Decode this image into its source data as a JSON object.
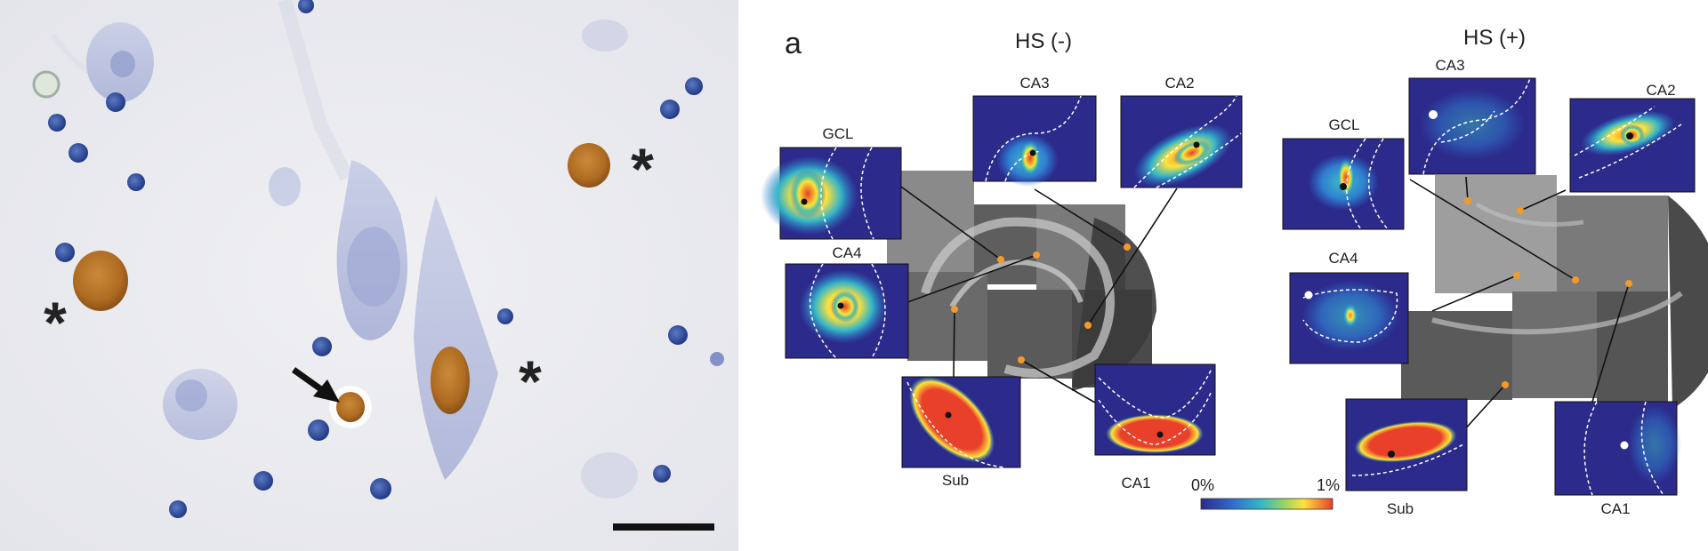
{
  "micrograph": {
    "markers": {
      "asterisk": "*"
    },
    "colors": {
      "background": "#ececf0",
      "stained_nucleus": "#b8742a",
      "small_nucleus": "#3a5aa8",
      "neuron_body": "#aab4d8"
    }
  },
  "figure": {
    "panel_label": "a",
    "groups": [
      {
        "title": "HS (-)"
      },
      {
        "title": "HS (+)"
      }
    ],
    "insets_left": {
      "gcl": "GCL",
      "ca3": "CA3",
      "ca2": "CA2",
      "ca4": "CA4",
      "sub": "Sub",
      "ca1": "CA1"
    },
    "insets_right": {
      "gcl": "GCL",
      "ca3": "CA3",
      "ca2": "CA2",
      "ca4": "CA4",
      "sub": "Sub",
      "ca1": "CA1"
    },
    "colorbar": {
      "min_label": "0%",
      "max_label": "1%"
    },
    "colors": {
      "heat_low": "#2b2a8a",
      "heat_mid": "#33b5c8",
      "heat_high": "#ffe23a",
      "heat_max": "#e8402a",
      "connector_dot": "#f39a2a"
    }
  }
}
